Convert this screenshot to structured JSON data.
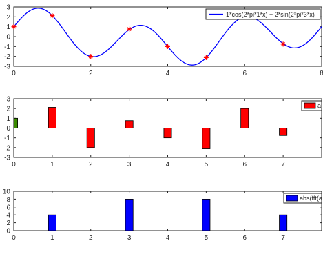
{
  "colors": {
    "curve": "#0000ff",
    "marker": "#ff0000",
    "bar_a": "#ff0000",
    "bar_a_first": "#3a8a00",
    "bar_fft": "#0000ff",
    "axis": "#262626",
    "legend_border": "#262626"
  },
  "chart_data": [
    {
      "type": "line",
      "legend_label": "1*cos(2*pi*1*x) + 2*sin(2*pi*3*x)",
      "legend_position": "top-right",
      "function": {
        "a": 1,
        "f1": 1,
        "b": 2,
        "f3": 3
      },
      "xlim": [
        0,
        8
      ],
      "ylim": [
        -3,
        3
      ],
      "xticks": [
        0,
        2,
        4,
        6,
        8
      ],
      "yticks": [
        -3,
        -2,
        -1,
        0,
        1,
        2,
        3
      ],
      "samples": {
        "x": [
          0,
          1,
          2,
          3,
          4,
          5,
          6,
          7
        ],
        "y": [
          1,
          2.12,
          -2,
          0.76,
          -1,
          -2.12,
          2,
          -0.76
        ]
      }
    },
    {
      "type": "bar",
      "legend_label": "a",
      "legend_position": "top-right",
      "categories": [
        0,
        1,
        2,
        3,
        4,
        5,
        6,
        7
      ],
      "values": [
        1,
        2.12,
        -2,
        0.76,
        -1,
        -2.12,
        2,
        -0.76
      ],
      "xlim": [
        0,
        8
      ],
      "ylim": [
        -3,
        3
      ],
      "xticks": [
        0,
        1,
        2,
        3,
        4,
        5,
        6,
        7
      ],
      "yticks": [
        -3,
        -2,
        -1,
        0,
        1,
        2,
        3
      ]
    },
    {
      "type": "bar",
      "legend_label": "abs(fft(a",
      "legend_position": "top-right",
      "categories": [
        0,
        1,
        2,
        3,
        4,
        5,
        6,
        7
      ],
      "values": [
        0,
        4,
        0,
        8,
        0,
        8,
        0,
        4
      ],
      "xlim": [
        0,
        8
      ],
      "ylim": [
        0,
        10
      ],
      "xticks": [
        0,
        1,
        2,
        3,
        4,
        5,
        6,
        7
      ],
      "yticks": [
        0,
        2,
        4,
        6,
        8,
        10
      ]
    }
  ]
}
